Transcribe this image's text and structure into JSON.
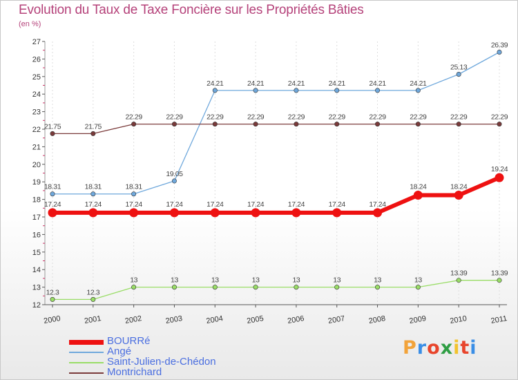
{
  "title": "Evolution du Taux de Taxe Foncière sur les Propriétés Bâties",
  "subtitle": "(en %)",
  "logo": "Proxiti",
  "chart_data": {
    "type": "line",
    "title": "Evolution du Taux de Taxe Foncière sur les Propriétés Bâties",
    "ylabel": "(en %)",
    "x": [
      "2000",
      "2001",
      "2002",
      "2003",
      "2004",
      "2005",
      "2006",
      "2007",
      "2008",
      "2009",
      "2010",
      "2011"
    ],
    "ylim": [
      12,
      27
    ],
    "yticks": [
      "12",
      "13",
      "14",
      "15",
      "16",
      "17",
      "18",
      "19",
      "20",
      "21",
      "22",
      "23",
      "24",
      "25",
      "26",
      "27"
    ],
    "grid": "vertical",
    "legend_position": "bottom-left",
    "series": [
      {
        "name": "BOURRé",
        "color": "#ee1111",
        "values": [
          17.24,
          17.24,
          17.24,
          17.24,
          17.24,
          17.24,
          17.24,
          17.24,
          17.24,
          18.24,
          18.24,
          19.24
        ],
        "labels": [
          "17.24",
          "17.24",
          "17.24",
          "17.24",
          "17.24",
          "17.24",
          "17.24",
          "17.24",
          "17.24",
          "18.24",
          "18.24",
          "19.24"
        ]
      },
      {
        "name": "Angé",
        "color": "#6fa8dc",
        "values": [
          18.31,
          18.31,
          18.31,
          19.05,
          24.21,
          24.21,
          24.21,
          24.21,
          24.21,
          24.21,
          25.13,
          26.39
        ],
        "labels": [
          "18.31",
          "18.31",
          "18.31",
          "19.05",
          "24.21",
          "24.21",
          "24.21",
          "24.21",
          "24.21",
          "24.21",
          "25.13",
          "26.39"
        ]
      },
      {
        "name": "Saint-Julien-de-Chédon",
        "color": "#99dd66",
        "values": [
          12.3,
          12.3,
          13,
          13,
          13,
          13,
          13,
          13,
          13,
          13,
          13.39,
          13.39
        ],
        "labels": [
          "12.3",
          "12.3",
          "13",
          "13",
          "13",
          "13",
          "13",
          "13",
          "13",
          "13",
          "13.39",
          "13.39"
        ]
      },
      {
        "name": "Montrichard",
        "color": "#7a3a3a",
        "values": [
          21.75,
          21.75,
          22.29,
          22.29,
          22.29,
          22.29,
          22.29,
          22.29,
          22.29,
          22.29,
          22.29,
          22.29
        ],
        "labels": [
          "21.75",
          "21.75",
          "22.29",
          "22.29",
          "22.29",
          "22.29",
          "22.29",
          "22.29",
          "22.29",
          "22.29",
          "22.29",
          "22.29"
        ]
      }
    ]
  }
}
